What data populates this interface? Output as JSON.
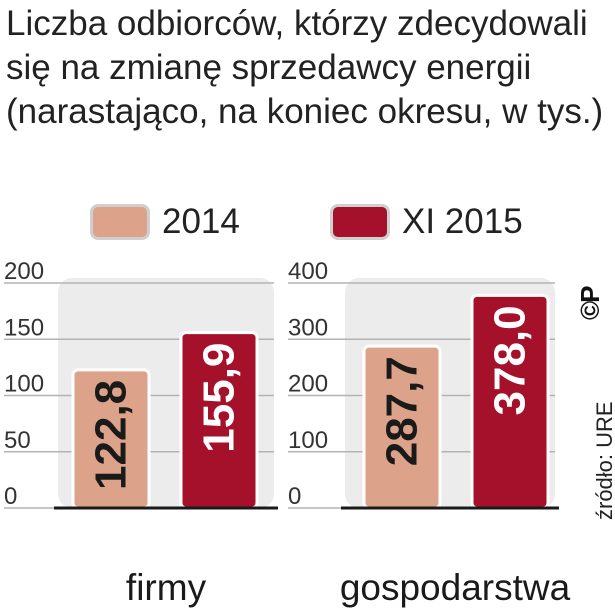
{
  "title": "Liczba odbiorców, którzy zdecydowali się na zmianę sprzedawcy energii (narastająco, na koniec okresu, w tys.)",
  "legend": [
    {
      "label": "2014",
      "color": "#dca28a"
    },
    {
      "label": "XI 2015",
      "color": "#a5102a"
    }
  ],
  "source": "źródło: URE",
  "logo": "©P",
  "chart_data": [
    {
      "type": "bar",
      "categories": [
        "firmy"
      ],
      "series": [
        {
          "name": "2014",
          "values": [
            122.8
          ],
          "labels": [
            "122,8"
          ]
        },
        {
          "name": "XI 2015",
          "values": [
            155.9
          ],
          "labels": [
            "155,9"
          ]
        }
      ],
      "ylim": [
        0,
        200
      ],
      "yticks": [
        "0",
        "50",
        "100",
        "150",
        "200"
      ],
      "grid": true
    },
    {
      "type": "bar",
      "categories": [
        "gospodarstwa"
      ],
      "series": [
        {
          "name": "2014",
          "values": [
            287.7
          ],
          "labels": [
            "287,7"
          ]
        },
        {
          "name": "XI 2015",
          "values": [
            378.0
          ],
          "labels": [
            "378,0"
          ]
        }
      ],
      "ylim": [
        0,
        400
      ],
      "yticks": [
        "0",
        "100",
        "200",
        "300",
        "400"
      ],
      "grid": true
    }
  ]
}
